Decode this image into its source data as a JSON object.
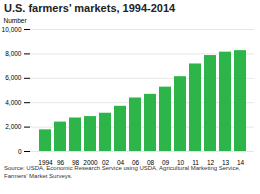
{
  "chart_data": {
    "type": "bar",
    "title": "U.S. farmers’ markets, 1994-2014",
    "ylabel": "Number",
    "caption": "Source: USDA, Economic Research Service using USDA, Agricultural Marketing Service,\nFarmers’ Market Surveys.",
    "categories": [
      "1994",
      "96",
      "98",
      "2000",
      "02",
      "04",
      "06",
      "08",
      "09",
      "10",
      "11",
      "12",
      "13",
      "14"
    ],
    "values": [
      1775,
      2410,
      2746,
      2863,
      3137,
      3706,
      4385,
      4685,
      5274,
      6132,
      7175,
      7864,
      8144,
      8268
    ],
    "color": "#2db54a",
    "ylim": [
      0,
      10000
    ],
    "yticks": [
      0,
      {
        "value": 2000,
        "label": "2,000"
      },
      {
        "value": 4000,
        "label": "4,000"
      },
      {
        "value": 6000,
        "label": "6,000"
      },
      {
        "value": 8000,
        "label": "8,000"
      },
      {
        "value": 10000,
        "label": "10,000"
      }
    ],
    "grid": true
  }
}
